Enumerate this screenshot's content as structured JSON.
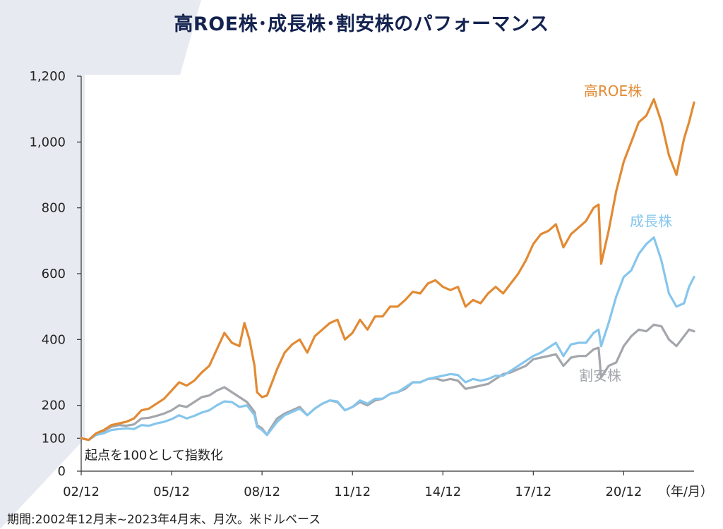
{
  "colors": {
    "high_roe": "#e28a33",
    "growth": "#86c6ec",
    "value": "#a3a6ab",
    "title": "#14234f"
  },
  "chart_data": {
    "type": "line",
    "title": "高ROE株･成長株･割安株のパフォーマンス",
    "subtitle": "",
    "xlabel": "",
    "ylabel": "",
    "x_unit_label": "（年/月）",
    "annotation": "起点を100として指数化",
    "footnote": "期間:2002年12月末~2023年4月末、月次。米ドルベース",
    "x_range": [
      "2002-12",
      "2023-04"
    ],
    "ylim": [
      0,
      1200
    ],
    "y_ticks": [
      0,
      100,
      200,
      400,
      600,
      800,
      1000,
      1200
    ],
    "y_tick_labels": [
      "0",
      "100",
      "200",
      "400",
      "600",
      "800",
      "1,000",
      "1,200"
    ],
    "x_ticks": [
      "2002-12",
      "2005-12",
      "2008-12",
      "2011-12",
      "2014-12",
      "2017-12",
      "2020-12"
    ],
    "x_tick_labels": [
      "02/12",
      "05/12",
      "08/12",
      "11/12",
      "14/12",
      "17/12",
      "20/12"
    ],
    "grid": false,
    "series": [
      {
        "name": "高ROE株",
        "points": [
          [
            "2002-12",
            100
          ],
          [
            "2003-03",
            95
          ],
          [
            "2003-06",
            115
          ],
          [
            "2003-09",
            125
          ],
          [
            "2003-12",
            140
          ],
          [
            "2004-03",
            145
          ],
          [
            "2004-06",
            150
          ],
          [
            "2004-09",
            160
          ],
          [
            "2004-12",
            185
          ],
          [
            "2005-03",
            190
          ],
          [
            "2005-06",
            205
          ],
          [
            "2005-09",
            220
          ],
          [
            "2005-12",
            245
          ],
          [
            "2006-03",
            270
          ],
          [
            "2006-06",
            260
          ],
          [
            "2006-09",
            275
          ],
          [
            "2006-12",
            300
          ],
          [
            "2007-03",
            320
          ],
          [
            "2007-06",
            370
          ],
          [
            "2007-09",
            420
          ],
          [
            "2007-12",
            390
          ],
          [
            "2008-03",
            380
          ],
          [
            "2008-05",
            450
          ],
          [
            "2008-07",
            400
          ],
          [
            "2008-09",
            320
          ],
          [
            "2008-10",
            240
          ],
          [
            "2008-12",
            225
          ],
          [
            "2009-02",
            230
          ],
          [
            "2009-03",
            250
          ],
          [
            "2009-06",
            310
          ],
          [
            "2009-09",
            360
          ],
          [
            "2009-12",
            385
          ],
          [
            "2010-03",
            400
          ],
          [
            "2010-06",
            360
          ],
          [
            "2010-09",
            410
          ],
          [
            "2010-12",
            430
          ],
          [
            "2011-03",
            450
          ],
          [
            "2011-06",
            460
          ],
          [
            "2011-09",
            400
          ],
          [
            "2011-12",
            420
          ],
          [
            "2012-03",
            460
          ],
          [
            "2012-06",
            430
          ],
          [
            "2012-09",
            470
          ],
          [
            "2012-12",
            470
          ],
          [
            "2013-03",
            500
          ],
          [
            "2013-06",
            500
          ],
          [
            "2013-09",
            520
          ],
          [
            "2013-12",
            545
          ],
          [
            "2014-03",
            540
          ],
          [
            "2014-06",
            570
          ],
          [
            "2014-09",
            580
          ],
          [
            "2014-12",
            560
          ],
          [
            "2015-03",
            550
          ],
          [
            "2015-06",
            560
          ],
          [
            "2015-09",
            500
          ],
          [
            "2015-12",
            520
          ],
          [
            "2016-03",
            510
          ],
          [
            "2016-06",
            540
          ],
          [
            "2016-09",
            560
          ],
          [
            "2016-12",
            540
          ],
          [
            "2017-03",
            570
          ],
          [
            "2017-06",
            600
          ],
          [
            "2017-09",
            640
          ],
          [
            "2017-12",
            690
          ],
          [
            "2018-03",
            720
          ],
          [
            "2018-06",
            730
          ],
          [
            "2018-09",
            750
          ],
          [
            "2018-12",
            680
          ],
          [
            "2019-03",
            720
          ],
          [
            "2019-06",
            740
          ],
          [
            "2019-09",
            760
          ],
          [
            "2019-12",
            800
          ],
          [
            "2020-02",
            810
          ],
          [
            "2020-03",
            630
          ],
          [
            "2020-06",
            730
          ],
          [
            "2020-09",
            850
          ],
          [
            "2020-12",
            940
          ],
          [
            "2021-03",
            1000
          ],
          [
            "2021-06",
            1060
          ],
          [
            "2021-09",
            1080
          ],
          [
            "2021-12",
            1130
          ],
          [
            "2022-03",
            1060
          ],
          [
            "2022-06",
            960
          ],
          [
            "2022-09",
            900
          ],
          [
            "2022-12",
            1010
          ],
          [
            "2023-02",
            1060
          ],
          [
            "2023-04",
            1120
          ]
        ]
      },
      {
        "name": "成長株",
        "points": [
          [
            "2002-12",
            100
          ],
          [
            "2003-03",
            95
          ],
          [
            "2003-06",
            110
          ],
          [
            "2003-09",
            115
          ],
          [
            "2003-12",
            125
          ],
          [
            "2004-03",
            128
          ],
          [
            "2004-06",
            130
          ],
          [
            "2004-09",
            128
          ],
          [
            "2004-12",
            140
          ],
          [
            "2005-03",
            138
          ],
          [
            "2005-06",
            145
          ],
          [
            "2005-09",
            150
          ],
          [
            "2005-12",
            158
          ],
          [
            "2006-03",
            170
          ],
          [
            "2006-06",
            160
          ],
          [
            "2006-09",
            168
          ],
          [
            "2006-12",
            178
          ],
          [
            "2007-03",
            185
          ],
          [
            "2007-06",
            200
          ],
          [
            "2007-09",
            212
          ],
          [
            "2007-12",
            210
          ],
          [
            "2008-03",
            195
          ],
          [
            "2008-06",
            200
          ],
          [
            "2008-09",
            170
          ],
          [
            "2008-10",
            135
          ],
          [
            "2008-12",
            125
          ],
          [
            "2009-02",
            110
          ],
          [
            "2009-03",
            120
          ],
          [
            "2009-06",
            150
          ],
          [
            "2009-09",
            170
          ],
          [
            "2009-12",
            180
          ],
          [
            "2010-03",
            190
          ],
          [
            "2010-06",
            170
          ],
          [
            "2010-09",
            190
          ],
          [
            "2010-12",
            205
          ],
          [
            "2011-03",
            215
          ],
          [
            "2011-06",
            212
          ],
          [
            "2011-09",
            185
          ],
          [
            "2011-12",
            195
          ],
          [
            "2012-03",
            215
          ],
          [
            "2012-06",
            205
          ],
          [
            "2012-09",
            220
          ],
          [
            "2012-12",
            220
          ],
          [
            "2013-03",
            235
          ],
          [
            "2013-06",
            240
          ],
          [
            "2013-09",
            255
          ],
          [
            "2013-12",
            270
          ],
          [
            "2014-03",
            270
          ],
          [
            "2014-06",
            280
          ],
          [
            "2014-09",
            285
          ],
          [
            "2014-12",
            290
          ],
          [
            "2015-03",
            295
          ],
          [
            "2015-06",
            292
          ],
          [
            "2015-09",
            270
          ],
          [
            "2015-12",
            280
          ],
          [
            "2016-03",
            275
          ],
          [
            "2016-06",
            280
          ],
          [
            "2016-09",
            290
          ],
          [
            "2016-12",
            290
          ],
          [
            "2017-03",
            305
          ],
          [
            "2017-06",
            320
          ],
          [
            "2017-09",
            335
          ],
          [
            "2017-12",
            350
          ],
          [
            "2018-03",
            360
          ],
          [
            "2018-06",
            375
          ],
          [
            "2018-09",
            390
          ],
          [
            "2018-12",
            350
          ],
          [
            "2019-03",
            385
          ],
          [
            "2019-06",
            390
          ],
          [
            "2019-09",
            390
          ],
          [
            "2019-12",
            420
          ],
          [
            "2020-02",
            430
          ],
          [
            "2020-03",
            380
          ],
          [
            "2020-06",
            450
          ],
          [
            "2020-09",
            530
          ],
          [
            "2020-12",
            590
          ],
          [
            "2021-03",
            610
          ],
          [
            "2021-06",
            660
          ],
          [
            "2021-09",
            690
          ],
          [
            "2021-12",
            710
          ],
          [
            "2022-03",
            640
          ],
          [
            "2022-06",
            540
          ],
          [
            "2022-09",
            500
          ],
          [
            "2022-12",
            510
          ],
          [
            "2023-02",
            560
          ],
          [
            "2023-04",
            590
          ]
        ]
      },
      {
        "name": "割安株",
        "points": [
          [
            "2002-12",
            100
          ],
          [
            "2003-03",
            95
          ],
          [
            "2003-06",
            115
          ],
          [
            "2003-09",
            122
          ],
          [
            "2003-12",
            135
          ],
          [
            "2004-03",
            140
          ],
          [
            "2004-06",
            138
          ],
          [
            "2004-09",
            142
          ],
          [
            "2004-12",
            160
          ],
          [
            "2005-03",
            162
          ],
          [
            "2005-06",
            168
          ],
          [
            "2005-09",
            175
          ],
          [
            "2005-12",
            185
          ],
          [
            "2006-03",
            200
          ],
          [
            "2006-06",
            195
          ],
          [
            "2006-09",
            210
          ],
          [
            "2006-12",
            225
          ],
          [
            "2007-03",
            230
          ],
          [
            "2007-06",
            245
          ],
          [
            "2007-09",
            255
          ],
          [
            "2007-12",
            240
          ],
          [
            "2008-03",
            225
          ],
          [
            "2008-06",
            210
          ],
          [
            "2008-09",
            180
          ],
          [
            "2008-10",
            140
          ],
          [
            "2008-12",
            130
          ],
          [
            "2009-02",
            110
          ],
          [
            "2009-03",
            125
          ],
          [
            "2009-06",
            160
          ],
          [
            "2009-09",
            175
          ],
          [
            "2009-12",
            185
          ],
          [
            "2010-03",
            195
          ],
          [
            "2010-06",
            170
          ],
          [
            "2010-09",
            190
          ],
          [
            "2010-12",
            205
          ],
          [
            "2011-03",
            215
          ],
          [
            "2011-06",
            210
          ],
          [
            "2011-09",
            185
          ],
          [
            "2011-12",
            195
          ],
          [
            "2012-03",
            210
          ],
          [
            "2012-06",
            200
          ],
          [
            "2012-09",
            215
          ],
          [
            "2012-12",
            220
          ],
          [
            "2013-03",
            235
          ],
          [
            "2013-06",
            240
          ],
          [
            "2013-09",
            250
          ],
          [
            "2013-12",
            270
          ],
          [
            "2014-03",
            270
          ],
          [
            "2014-06",
            280
          ],
          [
            "2014-09",
            282
          ],
          [
            "2014-12",
            275
          ],
          [
            "2015-03",
            280
          ],
          [
            "2015-06",
            275
          ],
          [
            "2015-09",
            250
          ],
          [
            "2015-12",
            255
          ],
          [
            "2016-03",
            260
          ],
          [
            "2016-06",
            265
          ],
          [
            "2016-09",
            280
          ],
          [
            "2016-12",
            295
          ],
          [
            "2017-03",
            300
          ],
          [
            "2017-06",
            310
          ],
          [
            "2017-09",
            320
          ],
          [
            "2017-12",
            340
          ],
          [
            "2018-03",
            345
          ],
          [
            "2018-06",
            350
          ],
          [
            "2018-09",
            355
          ],
          [
            "2018-12",
            320
          ],
          [
            "2019-03",
            345
          ],
          [
            "2019-06",
            350
          ],
          [
            "2019-09",
            350
          ],
          [
            "2019-12",
            370
          ],
          [
            "2020-02",
            375
          ],
          [
            "2020-03",
            285
          ],
          [
            "2020-06",
            320
          ],
          [
            "2020-09",
            330
          ],
          [
            "2020-12",
            380
          ],
          [
            "2021-03",
            410
          ],
          [
            "2021-06",
            430
          ],
          [
            "2021-09",
            425
          ],
          [
            "2021-12",
            445
          ],
          [
            "2022-03",
            440
          ],
          [
            "2022-06",
            400
          ],
          [
            "2022-09",
            380
          ],
          [
            "2022-12",
            410
          ],
          [
            "2023-02",
            430
          ],
          [
            "2023-04",
            425
          ]
        ]
      }
    ]
  }
}
